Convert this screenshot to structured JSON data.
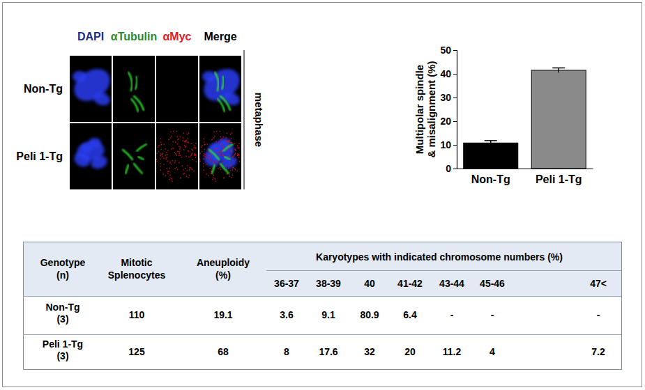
{
  "image_panel": {
    "columns": [
      {
        "label": "DAPI",
        "color": "#1c2a8a"
      },
      {
        "label": "αTubulin",
        "color": "#2e8b2e"
      },
      {
        "label": "αMyc",
        "color": "#e02020"
      },
      {
        "label": "Merge",
        "color": "#000000"
      }
    ],
    "rows": [
      "Non-Tg",
      "Peli 1-Tg"
    ],
    "stage": "metaphase"
  },
  "chart_data": {
    "type": "bar",
    "categories": [
      "Non-Tg",
      "Peli 1-Tg"
    ],
    "values": [
      10.8,
      41.5
    ],
    "errors": [
      1,
      1
    ],
    "colors": [
      "#000000",
      "#8a8a8a"
    ],
    "y_label": [
      "Multipolar spindle",
      "& misalignment (%)"
    ],
    "ylim": [
      0,
      50
    ],
    "yticks": [
      0,
      10,
      20,
      30,
      40,
      50
    ]
  },
  "table": {
    "columns": [
      [
        "Genotype",
        "(n)"
      ],
      [
        "Mitotic",
        "Splenocytes"
      ],
      [
        "Aneuploidy",
        "(%)"
      ]
    ],
    "group_header": "Karyotypes with indicated chromosome numbers (%)",
    "ranges": [
      "36-37",
      "38-39",
      "40",
      "41-42",
      "43-44",
      "45-46",
      "47<"
    ],
    "rows": [
      {
        "genotype": [
          "Non-Tg",
          "(3)"
        ],
        "cells": [
          110,
          19.1,
          3.6,
          9.1,
          80.9,
          6.4,
          "-",
          "-",
          "-"
        ]
      },
      {
        "genotype": [
          "Peli 1-Tg",
          "(3)"
        ],
        "cells": [
          125,
          68,
          8,
          17.6,
          32,
          20,
          11.2,
          4,
          7.2
        ]
      }
    ]
  }
}
